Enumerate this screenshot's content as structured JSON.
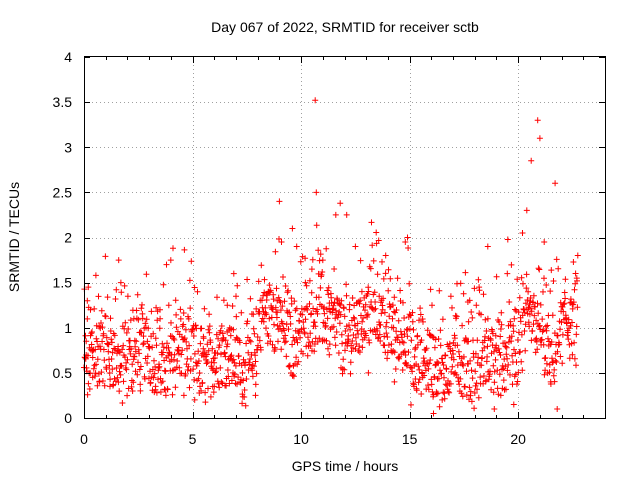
{
  "chart_data": {
    "type": "scatter",
    "title": "Day 067 of 2022, SRMTID for receiver sctb",
    "xlabel": "GPS time / hours",
    "ylabel": "SRMTID / TECUs",
    "xlim": [
      0,
      24
    ],
    "ylim": [
      0,
      4
    ],
    "x_ticks": [
      0,
      5,
      10,
      15,
      20
    ],
    "x_tick_labels": [
      "0",
      "5",
      "10",
      "15",
      "20"
    ],
    "y_ticks": [
      0,
      0.5,
      1,
      1.5,
      2,
      2.5,
      3,
      3.5,
      4
    ],
    "y_tick_labels": [
      "0",
      "0.5",
      "1",
      "1.5",
      "2",
      "2.5",
      "3",
      "3.5",
      "4"
    ],
    "grid": true,
    "marker": "+",
    "series": [
      {
        "name": "SRMTID",
        "color": "#ff0000",
        "data_start": 0,
        "data_end": 22.75,
        "sample_step_hours": 0.0167,
        "points": [
          [
            0.1,
            0.85
          ],
          [
            0.15,
            1.3
          ],
          [
            0.2,
            1.45
          ],
          [
            0.3,
            1.2
          ],
          [
            0.4,
            0.45
          ],
          [
            0.55,
            1.58
          ],
          [
            0.7,
            0.4
          ],
          [
            1.2,
            0.35
          ],
          [
            1.6,
            1.75
          ],
          [
            1.7,
            1.5
          ],
          [
            2.3,
            1.1
          ],
          [
            2.6,
            0.3
          ],
          [
            3.3,
            0.35
          ],
          [
            3.5,
            1.2
          ],
          [
            3.8,
            1.7
          ],
          [
            4.0,
            1.75
          ],
          [
            4.1,
            1.88
          ],
          [
            4.6,
            0.25
          ],
          [
            5.1,
            0.2
          ],
          [
            5.5,
            0.9
          ],
          [
            6.0,
            0.35
          ],
          [
            6.6,
            1.25
          ],
          [
            6.9,
            1.6
          ],
          [
            7.0,
            1.35
          ],
          [
            7.3,
            0.5
          ],
          [
            7.9,
            0.25
          ],
          [
            8.4,
            1.15
          ],
          [
            8.9,
            1.3
          ],
          [
            9.0,
            2.4
          ],
          [
            9.1,
            1.95
          ],
          [
            9.6,
            2.1
          ],
          [
            9.8,
            1.9
          ],
          [
            10.2,
            1.5
          ],
          [
            10.5,
            1.65
          ],
          [
            10.65,
            3.52
          ],
          [
            10.7,
            2.5
          ],
          [
            11.0,
            1.75
          ],
          [
            11.3,
            0.7
          ],
          [
            11.6,
            2.25
          ],
          [
            11.8,
            2.38
          ],
          [
            12.1,
            2.25
          ],
          [
            12.5,
            1.9
          ],
          [
            12.8,
            1.4
          ],
          [
            13.1,
            0.5
          ],
          [
            13.6,
            1.35
          ],
          [
            13.9,
            1.8
          ],
          [
            14.3,
            0.4
          ],
          [
            14.8,
            1.95
          ],
          [
            14.9,
            2.0
          ],
          [
            15.2,
            0.35
          ],
          [
            15.6,
            0.45
          ],
          [
            16.1,
            0.05
          ],
          [
            16.5,
            0.2
          ],
          [
            16.9,
            1.35
          ],
          [
            17.1,
            0.5
          ],
          [
            17.7,
            0.6
          ],
          [
            18.2,
            1.45
          ],
          [
            18.6,
            1.9
          ],
          [
            18.9,
            0.1
          ],
          [
            19.2,
            0.25
          ],
          [
            19.5,
            1.6
          ],
          [
            19.8,
            0.15
          ],
          [
            20.2,
            2.05
          ],
          [
            20.4,
            2.3
          ],
          [
            20.6,
            2.85
          ],
          [
            20.9,
            3.3
          ],
          [
            21.0,
            3.1
          ],
          [
            21.2,
            1.95
          ],
          [
            21.5,
            0.4
          ],
          [
            21.7,
            2.6
          ],
          [
            21.8,
            0.1
          ],
          [
            22.2,
            1.1
          ],
          [
            22.5,
            0.7
          ],
          [
            22.7,
            1.55
          ]
        ]
      }
    ]
  }
}
